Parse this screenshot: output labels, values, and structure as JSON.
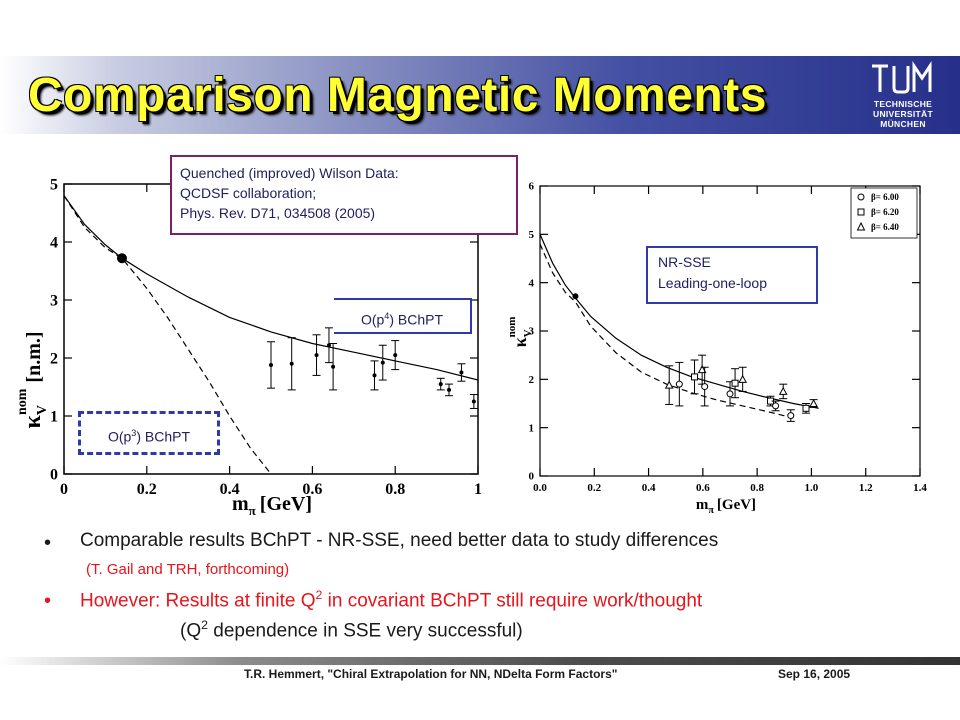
{
  "slide": {
    "title": "Comparison Magnetic Moments",
    "logo_lines": [
      "TECHNISCHE",
      "UNIVERSITÄT",
      "MÜNCHEN"
    ],
    "colors": {
      "title_text": "#ffff33",
      "title_bar": "#26308a",
      "bullet_red": "#e8141c",
      "box_purple": "#7a1f6b",
      "box_blue": "#2e3aa8"
    }
  },
  "annotations": {
    "quenched_box": [
      "Quenched (improved) Wilson Data:",
      "QCDSF collaboration;",
      "Phys. Rev. D71, 034508 (2005)"
    ],
    "op4_label_main": "O(p",
    "op4_exp": "4",
    "op4_label_rest": ") BChPT",
    "op3_label_main": "O(p",
    "op3_exp": "3",
    "op3_label_rest": ") BChPT",
    "nrsse_box": [
      "NR-SSE",
      "Leading-one-loop"
    ]
  },
  "bullets": {
    "b1": "Comparable results BChPT - NR-SSE, need better data to study differences",
    "b1_sub": "(T. Gail and TRH, forthcoming)",
    "b2_main": "However: Results at finite Q",
    "b2_exp": "2",
    "b2_rest": " in covariant BChPT still require work/thought",
    "b2_sub_main": "(Q",
    "b2_sub_exp": "2",
    "b2_sub_rest": " dependence in SSE very successful)"
  },
  "footer": {
    "left": "T.R. Hemmert, \"Chiral Extrapolation for NN, NDelta Form Factors\"",
    "right": "Sep 16, 2005"
  },
  "chart_data": [
    {
      "type": "line",
      "xlabel_main": "m",
      "xlabel_sub": "π",
      "xlabel_unit": "[GeV]",
      "ylabel_main": "κ",
      "ylabel_sub": "V",
      "ylabel_sup": "nom",
      "ylabel_unit": "[n.m.]",
      "xlim": [
        0,
        1
      ],
      "ylim": [
        0,
        5
      ],
      "xticks": [
        "0",
        "0.2",
        "0.4",
        "0.6",
        "0.8",
        "1"
      ],
      "yticks": [
        "0",
        "1",
        "2",
        "3",
        "4",
        "5"
      ],
      "series": [
        {
          "style": "solid",
          "x": [
            0,
            0.05,
            0.1,
            0.14,
            0.2,
            0.3,
            0.4,
            0.5,
            0.6,
            0.7,
            0.8,
            0.9,
            1.0
          ],
          "y": [
            4.8,
            4.3,
            3.95,
            3.72,
            3.45,
            3.05,
            2.7,
            2.45,
            2.25,
            2.1,
            1.95,
            1.8,
            1.62
          ]
        },
        {
          "style": "dashed",
          "x": [
            0,
            0.05,
            0.1,
            0.14,
            0.2,
            0.25,
            0.3,
            0.35,
            0.4,
            0.45,
            0.5
          ],
          "y": [
            4.8,
            4.25,
            3.9,
            3.72,
            3.2,
            2.7,
            2.15,
            1.6,
            1.0,
            0.45,
            0.0
          ]
        }
      ],
      "physical_point": {
        "x": 0.14,
        "y": 3.72
      },
      "data_points": [
        {
          "x": 0.5,
          "y": 1.88,
          "err": 0.4
        },
        {
          "x": 0.55,
          "y": 1.9,
          "err": 0.45
        },
        {
          "x": 0.61,
          "y": 2.05,
          "err": 0.35
        },
        {
          "x": 0.64,
          "y": 2.22,
          "err": 0.3
        },
        {
          "x": 0.65,
          "y": 1.85,
          "err": 0.4
        },
        {
          "x": 0.75,
          "y": 1.7,
          "err": 0.25
        },
        {
          "x": 0.77,
          "y": 1.92,
          "err": 0.3
        },
        {
          "x": 0.8,
          "y": 2.05,
          "err": 0.25
        },
        {
          "x": 0.91,
          "y": 1.55,
          "err": 0.1
        },
        {
          "x": 0.93,
          "y": 1.45,
          "err": 0.1
        },
        {
          "x": 0.96,
          "y": 1.75,
          "err": 0.15
        },
        {
          "x": 0.99,
          "y": 1.25,
          "err": 0.12
        }
      ]
    },
    {
      "type": "line",
      "xlabel_main": "m",
      "xlabel_sub": "π",
      "xlabel_unit": "[GeV]",
      "ylabel_main": "κ",
      "ylabel_sub": "V",
      "ylabel_sup": "nom",
      "xlim": [
        0,
        1.5
      ],
      "ylim": [
        0,
        6
      ],
      "xticks": [
        "0.0",
        "0.2",
        "0.4",
        "0.6",
        "0.8",
        "1.0",
        "1.2",
        "1.4"
      ],
      "yticks": [
        "0",
        "1",
        "2",
        "3",
        "4",
        "5",
        "6"
      ],
      "legend": [
        "β= 6.00",
        "β= 6.20",
        "β= 6.40"
      ],
      "legend_markers": [
        "circle",
        "square",
        "triangle"
      ],
      "legend_position": "top-right",
      "series": [
        {
          "style": "solid",
          "x": [
            0,
            0.05,
            0.1,
            0.14,
            0.2,
            0.3,
            0.4,
            0.5,
            0.6,
            0.7,
            0.8,
            0.9,
            1.0,
            1.1
          ],
          "y": [
            5.0,
            4.4,
            3.95,
            3.68,
            3.3,
            2.85,
            2.5,
            2.25,
            2.05,
            1.9,
            1.75,
            1.62,
            1.5,
            1.4
          ]
        },
        {
          "style": "dashed",
          "x": [
            0,
            0.05,
            0.1,
            0.14,
            0.2,
            0.3,
            0.4,
            0.5,
            0.6,
            0.7,
            0.8,
            0.9,
            1.0
          ],
          "y": [
            4.8,
            4.2,
            3.8,
            3.6,
            3.1,
            2.55,
            2.15,
            1.9,
            1.72,
            1.57,
            1.45,
            1.33,
            1.2
          ]
        }
      ],
      "physical_point": {
        "x": 0.14,
        "y": 3.72
      },
      "data_points": [
        {
          "x": 0.51,
          "y": 1.88,
          "err": 0.4,
          "marker": "triangle"
        },
        {
          "x": 0.55,
          "y": 1.9,
          "err": 0.45,
          "marker": "circle"
        },
        {
          "x": 0.61,
          "y": 2.05,
          "err": 0.35,
          "marker": "square"
        },
        {
          "x": 0.64,
          "y": 2.2,
          "err": 0.3,
          "marker": "triangle"
        },
        {
          "x": 0.65,
          "y": 1.85,
          "err": 0.4,
          "marker": "circle"
        },
        {
          "x": 0.75,
          "y": 1.7,
          "err": 0.25,
          "marker": "circle"
        },
        {
          "x": 0.77,
          "y": 1.92,
          "err": 0.3,
          "marker": "square"
        },
        {
          "x": 0.8,
          "y": 2.0,
          "err": 0.25,
          "marker": "triangle"
        },
        {
          "x": 0.91,
          "y": 1.55,
          "err": 0.1,
          "marker": "square"
        },
        {
          "x": 0.93,
          "y": 1.45,
          "err": 0.1,
          "marker": "circle"
        },
        {
          "x": 0.96,
          "y": 1.75,
          "err": 0.15,
          "marker": "triangle"
        },
        {
          "x": 0.99,
          "y": 1.25,
          "err": 0.12,
          "marker": "circle"
        },
        {
          "x": 1.05,
          "y": 1.4,
          "err": 0.1,
          "marker": "square"
        },
        {
          "x": 1.08,
          "y": 1.5,
          "err": 0.08,
          "marker": "triangle"
        }
      ]
    }
  ]
}
